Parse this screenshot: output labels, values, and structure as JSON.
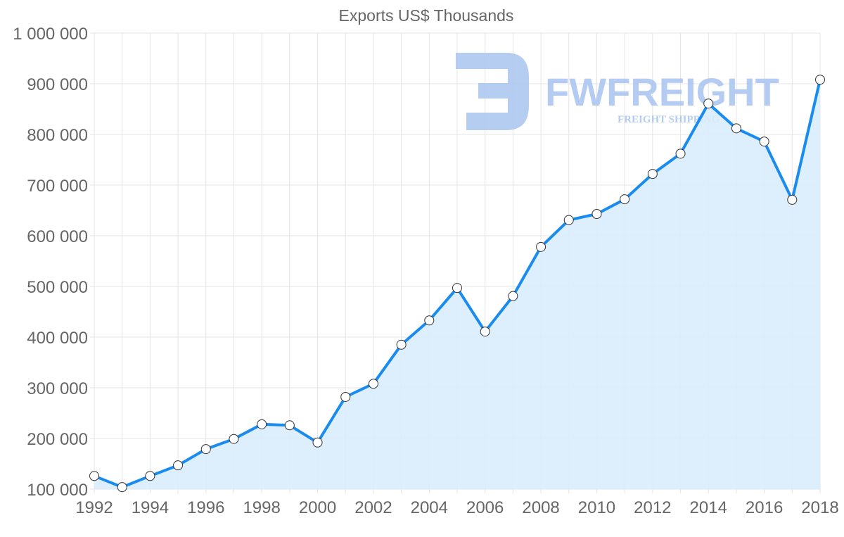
{
  "chart_data": {
    "type": "line",
    "title": "Exports US$ Thousands",
    "xlabel": "",
    "ylabel": "",
    "x": [
      1992,
      1993,
      1994,
      1995,
      1996,
      1997,
      1998,
      1999,
      2000,
      2001,
      2002,
      2003,
      2004,
      2005,
      2006,
      2007,
      2008,
      2009,
      2010,
      2011,
      2012,
      2013,
      2014,
      2015,
      2016,
      2017,
      2018
    ],
    "series": [
      {
        "name": "Exports US$ Thousands",
        "values": [
          126000,
          104000,
          126000,
          147000,
          179000,
          199000,
          228000,
          226000,
          192000,
          282000,
          308000,
          385000,
          433000,
          497000,
          411000,
          481000,
          578000,
          631000,
          643000,
          672000,
          722000,
          762000,
          861000,
          812000,
          786000,
          671000,
          908000
        ]
      }
    ],
    "ylim": [
      100000,
      1000000
    ],
    "yticks": [
      "100 000",
      "200 000",
      "300 000",
      "400 000",
      "500 000",
      "600 000",
      "700 000",
      "800 000",
      "900 000",
      "1 000 000"
    ],
    "xticks": [
      "1992",
      "1994",
      "1996",
      "1998",
      "2000",
      "2002",
      "2004",
      "2006",
      "2008",
      "2010",
      "2012",
      "2014",
      "2016",
      "2018"
    ],
    "grid": true,
    "fill": true,
    "colors": {
      "line": "#1a8cf0",
      "fill": "#d9ecfc",
      "point_fill": "#ffffff",
      "point_stroke": "#333333",
      "watermark": "#a9c4f0"
    }
  },
  "watermark": {
    "brand": "FWFREIGHT",
    "tagline": "FREIGHT SHIPPING"
  }
}
